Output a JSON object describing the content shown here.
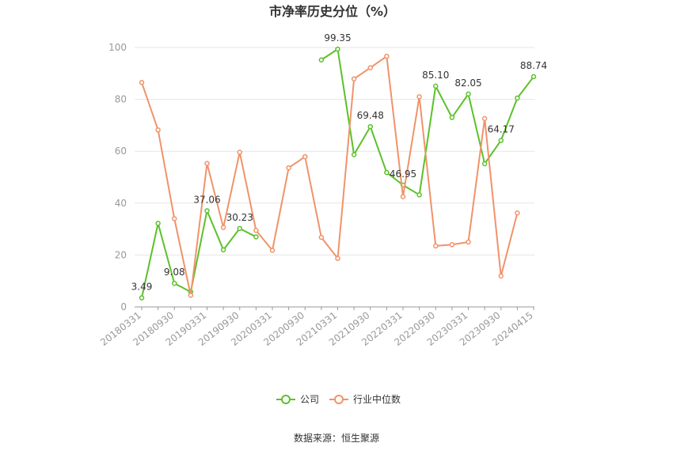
{
  "chart_data": {
    "type": "line",
    "title": "市净率历史分位（%）",
    "source": "数据来源：恒生聚源",
    "x": [
      "20180331",
      "20180630",
      "20180930",
      "20181231",
      "20190331",
      "20190630",
      "20190930",
      "20191231",
      "20200331",
      "20200630",
      "20200930",
      "20201231",
      "20210331",
      "20210630",
      "20210930",
      "20211231",
      "20220331",
      "20220630",
      "20220930",
      "20221231",
      "20230331",
      "20230630",
      "20230930",
      "20231231",
      "20240415"
    ],
    "xtick_labels": [
      "20180331",
      "20180930",
      "20190331",
      "20190930",
      "20200331",
      "20200930",
      "20210331",
      "20210930",
      "20220331",
      "20220930",
      "20230331",
      "20230930",
      "20240415"
    ],
    "ylim": [
      0,
      100
    ],
    "yticks": [
      0,
      20,
      40,
      60,
      80,
      100
    ],
    "grid": true,
    "legend_position": "bottom",
    "series": [
      {
        "name": "公司",
        "color": "#5bc12a",
        "values": [
          3.49,
          32.2,
          9.08,
          5.8,
          37.06,
          22.0,
          30.23,
          27.0,
          null,
          null,
          null,
          95.2,
          99.35,
          58.7,
          69.48,
          51.8,
          46.95,
          43.2,
          85.1,
          73.0,
          82.05,
          55.2,
          64.17,
          80.5,
          88.74
        ],
        "labels": [
          {
            "index": 0,
            "text": "3.49"
          },
          {
            "index": 2,
            "text": "9.08"
          },
          {
            "index": 4,
            "text": "37.06"
          },
          {
            "index": 6,
            "text": "30.23"
          },
          {
            "index": 12,
            "text": "99.35"
          },
          {
            "index": 14,
            "text": "69.48"
          },
          {
            "index": 16,
            "text": "46.95"
          },
          {
            "index": 18,
            "text": "85.10"
          },
          {
            "index": 20,
            "text": "82.05"
          },
          {
            "index": 22,
            "text": "64.17"
          },
          {
            "index": 24,
            "text": "88.74"
          }
        ]
      },
      {
        "name": "行业中位数",
        "color": "#f0936a",
        "values": [
          86.5,
          68.2,
          34.0,
          4.5,
          55.3,
          30.6,
          59.6,
          29.5,
          21.8,
          53.6,
          57.9,
          26.8,
          18.7,
          87.9,
          92.2,
          96.6,
          42.5,
          81.0,
          23.5,
          24.0,
          25.0,
          72.6,
          11.9,
          36.2,
          null
        ]
      }
    ]
  }
}
